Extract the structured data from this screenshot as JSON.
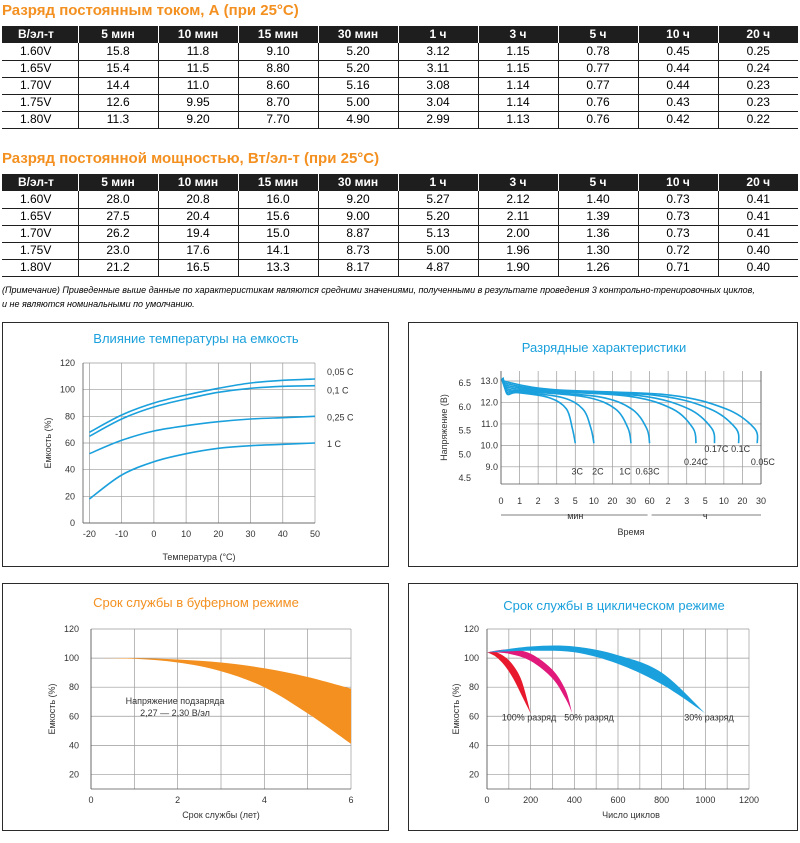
{
  "table1": {
    "title": "Разряд постоянным током, А (при 25°C)",
    "headers": [
      "В/эл-т",
      "5 мин",
      "10 мин",
      "15 мин",
      "30 мин",
      "1 ч",
      "3 ч",
      "5 ч",
      "10 ч",
      "20 ч"
    ],
    "rows": [
      [
        "1.60V",
        "15.8",
        "11.8",
        "9.10",
        "5.20",
        "3.12",
        "1.15",
        "0.78",
        "0.45",
        "0.25"
      ],
      [
        "1.65V",
        "15.4",
        "11.5",
        "8.80",
        "5.20",
        "3.11",
        "1.15",
        "0.77",
        "0.44",
        "0.24"
      ],
      [
        "1.70V",
        "14.4",
        "11.0",
        "8.60",
        "5.16",
        "3.08",
        "1.14",
        "0.77",
        "0.44",
        "0.23"
      ],
      [
        "1.75V",
        "12.6",
        "9.95",
        "8.70",
        "5.00",
        "3.04",
        "1.14",
        "0.76",
        "0.43",
        "0.23"
      ],
      [
        "1.80V",
        "11.3",
        "9.20",
        "7.70",
        "4.90",
        "2.99",
        "1.13",
        "0.76",
        "0.42",
        "0.22"
      ]
    ]
  },
  "table2": {
    "title": "Разряд постоянной мощностью, Вт/эл-т (при 25°C)",
    "headers": [
      "В/эл-т",
      "5 мин",
      "10 мин",
      "15 мин",
      "30 мин",
      "1 ч",
      "3 ч",
      "5 ч",
      "10 ч",
      "20 ч"
    ],
    "rows": [
      [
        "1.60V",
        "28.0",
        "20.8",
        "16.0",
        "9.20",
        "5.27",
        "2.12",
        "1.40",
        "0.73",
        "0.41"
      ],
      [
        "1.65V",
        "27.5",
        "20.4",
        "15.6",
        "9.00",
        "5.20",
        "2.11",
        "1.39",
        "0.73",
        "0.41"
      ],
      [
        "1.70V",
        "26.2",
        "19.4",
        "15.0",
        "8.87",
        "5.13",
        "2.00",
        "1.36",
        "0.73",
        "0.41"
      ],
      [
        "1.75V",
        "23.0",
        "17.6",
        "14.1",
        "8.73",
        "5.00",
        "1.96",
        "1.30",
        "0.72",
        "0.40"
      ],
      [
        "1.80V",
        "21.2",
        "16.5",
        "13.3",
        "8.17",
        "4.87",
        "1.90",
        "1.26",
        "0.71",
        "0.40"
      ]
    ]
  },
  "note": "(Примечание) Приведенные выше данные по характеристикам являются средними значениями, полученными в результате проведения 3 контрольно-тренировочных циклов, и не являются номинальными по умолчанию.",
  "colors": {
    "orange": "#f39020",
    "blue": "#1aa0dc",
    "red": "#e8192c",
    "magenta": "#e0197a",
    "cyan": "#1aa0dc"
  },
  "chart_data": [
    {
      "type": "line",
      "title": "Влияние температуры на емкость",
      "xlabel": "Температура (°C)",
      "ylabel": "Емкость (%)",
      "xticks": [
        "-20",
        "-10",
        "0",
        "10",
        "20",
        "30",
        "40",
        "50"
      ],
      "yticks": [
        "0",
        "20",
        "40",
        "60",
        "80",
        "100",
        "120"
      ],
      "xlim": [
        -22,
        50
      ],
      "ylim": [
        0,
        120
      ],
      "grid": true,
      "series": [
        {
          "name": "0,05 C",
          "x": [
            -20,
            -10,
            0,
            10,
            20,
            30,
            40,
            50
          ],
          "y": [
            68,
            81,
            90,
            96,
            101,
            105,
            107,
            108
          ]
        },
        {
          "name": "0,1 C",
          "x": [
            -20,
            -10,
            0,
            10,
            20,
            30,
            40,
            50
          ],
          "y": [
            65,
            78,
            87,
            93,
            98,
            101,
            102.5,
            103
          ]
        },
        {
          "name": "0,25 C",
          "x": [
            -20,
            -10,
            0,
            10,
            20,
            30,
            40,
            50
          ],
          "y": [
            52,
            62,
            69,
            73,
            76,
            78,
            79,
            80
          ]
        },
        {
          "name": "1 C",
          "x": [
            -20,
            -10,
            0,
            10,
            20,
            30,
            40,
            50
          ],
          "y": [
            18,
            36,
            46,
            52,
            56,
            58,
            59,
            60
          ]
        }
      ]
    },
    {
      "type": "line",
      "title": "Разрядные характеристики",
      "xlabel": "Время",
      "ylabel": "Напряжение (В)",
      "x_unit_min": "мин",
      "x_unit_h": "ч",
      "xticks": [
        "0",
        "1",
        "2",
        "3",
        "5",
        "10",
        "20",
        "30",
        "60",
        "2",
        "3",
        "5",
        "10",
        "20",
        "30"
      ],
      "yticks_outer": [
        "6.5",
        "6.0",
        "5.5",
        "5.0",
        "4.5"
      ],
      "yticks_inner": [
        "13.0",
        "12.0",
        "11.0",
        "10.0",
        "9.0"
      ],
      "grid": true,
      "series": [
        {
          "name": "3C",
          "end_tick": 4
        },
        {
          "name": "2C",
          "end_tick": 5
        },
        {
          "name": "1C",
          "end_tick": 7
        },
        {
          "name": "0.63C",
          "end_tick": 8
        },
        {
          "name": "0.24C",
          "end_tick": 10.5
        },
        {
          "name": "0.17C",
          "end_tick": 11.5
        },
        {
          "name": "0.1C",
          "end_tick": 12.8
        },
        {
          "name": "0.05C",
          "end_tick": 13.8
        }
      ]
    },
    {
      "type": "area",
      "title": "Срок службы в буферном режиме",
      "xlabel": "Срок службы (лет)",
      "ylabel": "Емкость (%)",
      "annotation": [
        "Напряжение подзаряда",
        "2,27 — 2,30 В/эл"
      ],
      "xticks": [
        "0",
        "2",
        "4",
        "6"
      ],
      "yticks": [
        "20",
        "40",
        "60",
        "80",
        "100",
        "120"
      ],
      "xlim": [
        0,
        6
      ],
      "ylim": [
        10,
        120
      ],
      "grid": true,
      "x": [
        0,
        1,
        2,
        3,
        4,
        5,
        6
      ],
      "upper": [
        100,
        100,
        99,
        97,
        93,
        87,
        79
      ],
      "lower": [
        100,
        99.5,
        97,
        91,
        80,
        62,
        41
      ]
    },
    {
      "type": "area",
      "title": "Срок службы в циклическом режиме",
      "xlabel": "Число циклов",
      "ylabel": "Емкость (%)",
      "xticks": [
        "0",
        "200",
        "400",
        "600",
        "800",
        "1000",
        "1200"
      ],
      "yticks": [
        "20",
        "40",
        "60",
        "80",
        "100",
        "120"
      ],
      "xlim": [
        0,
        1200
      ],
      "ylim": [
        10,
        120
      ],
      "grid": true,
      "series": [
        {
          "name": "100% разряд",
          "color": "#e8192c",
          "x": [
            0,
            40,
            80,
            120,
            160,
            200
          ],
          "upper": [
            104,
            104,
            101,
            95,
            84,
            62
          ],
          "lower": [
            104,
            101,
            95,
            86,
            74,
            62
          ]
        },
        {
          "name": "50% разряд",
          "color": "#e0197a",
          "x": [
            0,
            100,
            200,
            300,
            360,
            390
          ],
          "upper": [
            104,
            106,
            103,
            92,
            78,
            62
          ],
          "lower": [
            104,
            103,
            98,
            86,
            72,
            62
          ]
        },
        {
          "name": "30% разряд",
          "color": "#1aa0dc",
          "x": [
            0,
            200,
            400,
            600,
            800,
            1000
          ],
          "upper": [
            104,
            108,
            108,
            102,
            90,
            62
          ],
          "lower": [
            104,
            105,
            104,
            96,
            82,
            62
          ]
        }
      ]
    }
  ]
}
